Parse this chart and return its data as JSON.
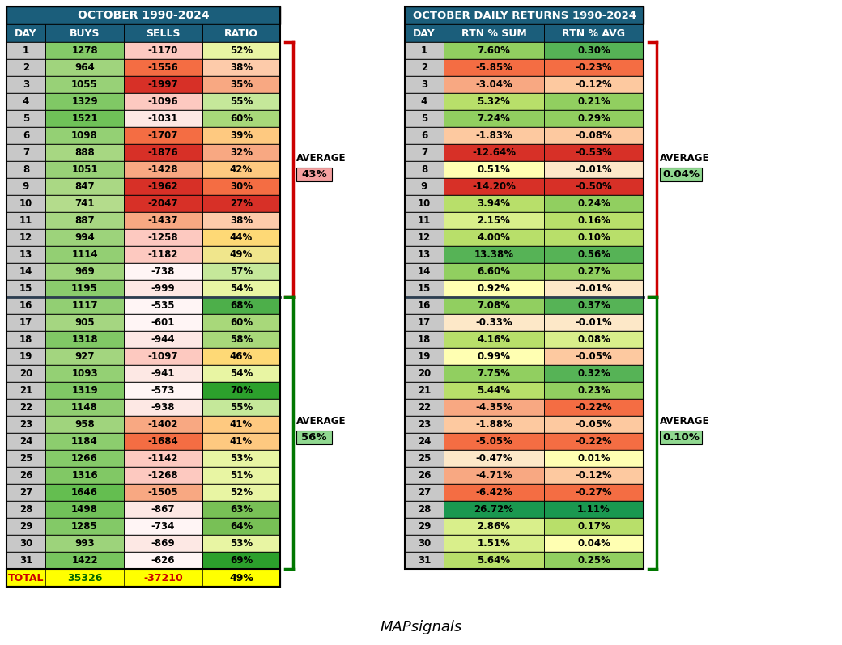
{
  "title1": "OCTOBER 1990-2024",
  "title2": "OCTOBER DAILY RETURNS 1990-2024",
  "headers1": [
    "DAY",
    "BUYS",
    "SELLS",
    "RATIO"
  ],
  "headers2": [
    "DAY",
    "RTN % SUM",
    "RTN % AVG"
  ],
  "days": [
    1,
    2,
    3,
    4,
    5,
    6,
    7,
    8,
    9,
    10,
    11,
    12,
    13,
    14,
    15,
    16,
    17,
    18,
    19,
    20,
    21,
    22,
    23,
    24,
    25,
    26,
    27,
    28,
    29,
    30,
    31
  ],
  "buys": [
    1278,
    964,
    1055,
    1329,
    1521,
    1098,
    888,
    1051,
    847,
    741,
    887,
    994,
    1114,
    969,
    1195,
    1117,
    905,
    1318,
    927,
    1093,
    1319,
    1148,
    958,
    1184,
    1266,
    1316,
    1646,
    1498,
    1285,
    993,
    1422
  ],
  "sells": [
    -1170,
    -1556,
    -1997,
    -1096,
    -1031,
    -1707,
    -1876,
    -1428,
    -1962,
    -2047,
    -1437,
    -1258,
    -1182,
    -738,
    -999,
    -535,
    -601,
    -944,
    -1097,
    -941,
    -573,
    -938,
    -1402,
    -1684,
    -1142,
    -1268,
    -1505,
    -867,
    -734,
    -869,
    -626
  ],
  "ratio": [
    52,
    38,
    35,
    55,
    60,
    39,
    32,
    42,
    30,
    27,
    38,
    44,
    49,
    57,
    54,
    68,
    60,
    58,
    46,
    54,
    70,
    55,
    41,
    41,
    53,
    51,
    52,
    63,
    64,
    53,
    69
  ],
  "rtn_sum": [
    7.6,
    -5.85,
    -3.04,
    5.32,
    7.24,
    -1.83,
    -12.64,
    0.51,
    -14.2,
    3.94,
    2.15,
    4.0,
    13.38,
    6.6,
    0.92,
    7.08,
    -0.33,
    4.16,
    0.99,
    7.75,
    5.44,
    -4.35,
    -1.88,
    -5.05,
    -0.47,
    -4.71,
    -6.42,
    26.72,
    2.86,
    1.51,
    5.64
  ],
  "rtn_avg": [
    0.3,
    -0.23,
    -0.12,
    0.21,
    0.29,
    -0.08,
    -0.53,
    -0.01,
    -0.5,
    0.24,
    0.16,
    0.1,
    0.56,
    0.27,
    -0.01,
    0.37,
    -0.01,
    0.08,
    -0.05,
    0.32,
    0.23,
    -0.22,
    -0.05,
    -0.22,
    0.01,
    -0.12,
    -0.27,
    1.11,
    0.17,
    0.04,
    0.25
  ],
  "total_buys": 35326,
  "total_sells": -37210,
  "total_ratio": 49,
  "avg1_value": "43%",
  "avg2_value": "56%",
  "avg3_value": "0.04%",
  "avg4_value": "0.10%",
  "header_bg": "#1b5e7b",
  "header_fg": "#ffffff",
  "day_col_bg": "#c8c8c8",
  "total_bg": "#ffff00",
  "total_fg_label": "#cc0000",
  "total_fg_buys": "#006600",
  "total_fg_sells": "#cc0000",
  "total_fg_ratio": "#000000"
}
